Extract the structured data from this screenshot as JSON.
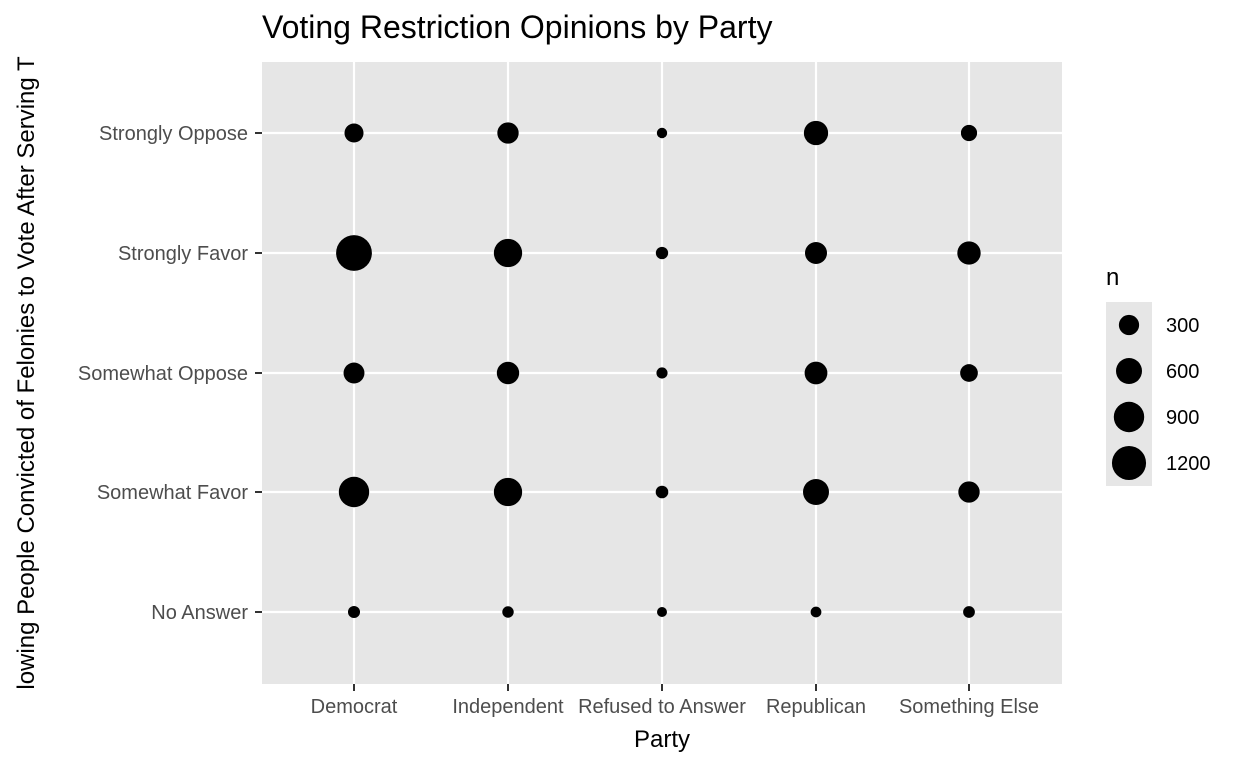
{
  "chart_data": {
    "type": "scatter",
    "title": "Voting Restriction Opinions by Party",
    "xlabel": "Party",
    "ylabel": "lowing People Convicted of Felonies to Vote After Serving T",
    "x_categories": [
      "Democrat",
      "Independent",
      "Refused to Answer",
      "Republican",
      "Something Else"
    ],
    "y_categories": [
      "No Answer",
      "Somewhat Favor",
      "Somewhat Oppose",
      "Strongly Favor",
      "Strongly Oppose"
    ],
    "size_variable": "n",
    "points": [
      {
        "x": "Democrat",
        "y": "Strongly Oppose",
        "n": 250
      },
      {
        "x": "Democrat",
        "y": "Strongly Favor",
        "n": 1350
      },
      {
        "x": "Democrat",
        "y": "Somewhat Oppose",
        "n": 330
      },
      {
        "x": "Democrat",
        "y": "Somewhat Favor",
        "n": 900
      },
      {
        "x": "Democrat",
        "y": "No Answer",
        "n": 50
      },
      {
        "x": "Independent",
        "y": "Strongly Oppose",
        "n": 350
      },
      {
        "x": "Independent",
        "y": "Strongly Favor",
        "n": 750
      },
      {
        "x": "Independent",
        "y": "Somewhat Oppose",
        "n": 400
      },
      {
        "x": "Independent",
        "y": "Somewhat Favor",
        "n": 750
      },
      {
        "x": "Independent",
        "y": "No Answer",
        "n": 40
      },
      {
        "x": "Refused to Answer",
        "y": "Strongly Oppose",
        "n": 25
      },
      {
        "x": "Refused to Answer",
        "y": "Strongly Favor",
        "n": 55
      },
      {
        "x": "Refused to Answer",
        "y": "Somewhat Oppose",
        "n": 35
      },
      {
        "x": "Refused to Answer",
        "y": "Somewhat Favor",
        "n": 60
      },
      {
        "x": "Refused to Answer",
        "y": "No Answer",
        "n": 20
      },
      {
        "x": "Republican",
        "y": "Strongly Oppose",
        "n": 500
      },
      {
        "x": "Republican",
        "y": "Strongly Favor",
        "n": 380
      },
      {
        "x": "Republican",
        "y": "Somewhat Oppose",
        "n": 420
      },
      {
        "x": "Republican",
        "y": "Somewhat Favor",
        "n": 600
      },
      {
        "x": "Republican",
        "y": "No Answer",
        "n": 30
      },
      {
        "x": "Something Else",
        "y": "Strongly Oppose",
        "n": 150
      },
      {
        "x": "Something Else",
        "y": "Strongly Favor",
        "n": 450
      },
      {
        "x": "Something Else",
        "y": "Somewhat Oppose",
        "n": 200
      },
      {
        "x": "Something Else",
        "y": "Somewhat Favor",
        "n": 350
      },
      {
        "x": "Something Else",
        "y": "No Answer",
        "n": 45
      }
    ],
    "legend": {
      "title": "n",
      "position": "right",
      "breaks": [
        {
          "value": 300,
          "label": "300"
        },
        {
          "value": 600,
          "label": "600"
        },
        {
          "value": 900,
          "label": "900"
        },
        {
          "value": 1200,
          "label": "1200"
        }
      ]
    },
    "panel_background": "#e6e6e6",
    "grid_color": "#ffffff",
    "point_color": "#000000",
    "grid": true
  }
}
